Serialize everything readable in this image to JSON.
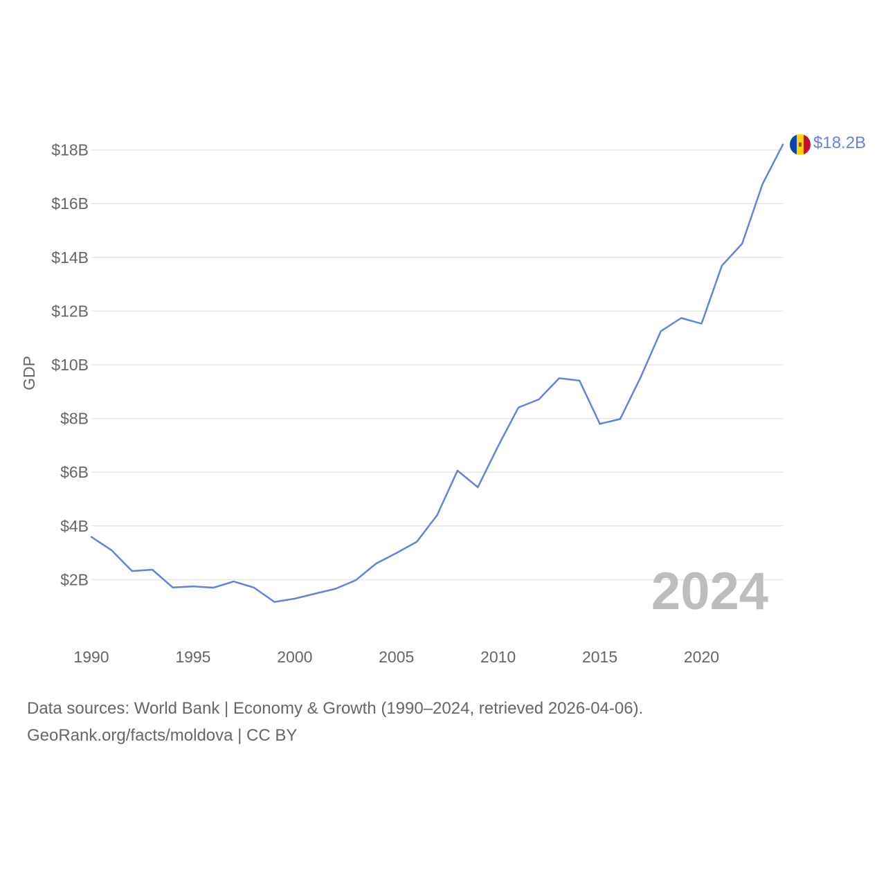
{
  "colors": {
    "line": "#6281e3",
    "grid": "#e6e6e6",
    "tick": "#666666",
    "watermark": "#bdbdbd",
    "flag_blue": "#0046ae",
    "flag_yellow": "#ffd200",
    "flag_red": "#cc092f"
  },
  "chart_data": {
    "type": "line",
    "title": "",
    "xlabel": "",
    "ylabel": "GDP",
    "xlim": [
      1990,
      2024
    ],
    "ylim": [
      0,
      18.5
    ],
    "grid": true,
    "y_ticks": [
      {
        "value": 2,
        "label": "$2B"
      },
      {
        "value": 4,
        "label": "$4B"
      },
      {
        "value": 6,
        "label": "$6B"
      },
      {
        "value": 8,
        "label": "$8B"
      },
      {
        "value": 10,
        "label": "$10B"
      },
      {
        "value": 12,
        "label": "$12B"
      },
      {
        "value": 14,
        "label": "$14B"
      },
      {
        "value": 16,
        "label": "$16B"
      },
      {
        "value": 18,
        "label": "$18B"
      }
    ],
    "x_ticks": [
      {
        "value": 1990,
        "label": "1990"
      },
      {
        "value": 1995,
        "label": "1995"
      },
      {
        "value": 2000,
        "label": "2000"
      },
      {
        "value": 2005,
        "label": "2005"
      },
      {
        "value": 2010,
        "label": "2010"
      },
      {
        "value": 2015,
        "label": "2015"
      },
      {
        "value": 2020,
        "label": "2020"
      }
    ],
    "series": [
      {
        "name": "Moldova",
        "flag_icon": "moldova-flag-icon",
        "end_label": "$18.2B",
        "x": [
          1990,
          1991,
          1992,
          1993,
          1994,
          1995,
          1996,
          1997,
          1998,
          1999,
          2000,
          2001,
          2002,
          2003,
          2004,
          2005,
          2006,
          2007,
          2008,
          2009,
          2010,
          2011,
          2012,
          2013,
          2014,
          2015,
          2016,
          2017,
          2018,
          2019,
          2020,
          2021,
          2022,
          2023,
          2024
        ],
        "values": [
          3.59,
          3.09,
          2.32,
          2.37,
          1.71,
          1.75,
          1.7,
          1.93,
          1.7,
          1.17,
          1.29,
          1.48,
          1.66,
          1.98,
          2.6,
          2.99,
          3.41,
          4.4,
          6.06,
          5.44,
          6.97,
          8.41,
          8.71,
          9.5,
          9.41,
          7.8,
          7.98,
          9.52,
          11.25,
          11.74,
          11.53,
          13.69,
          14.51,
          16.73,
          18.2
        ]
      }
    ],
    "annotation": "2024"
  },
  "footer": {
    "line1": "Data sources: World Bank | Economy & Growth (1990–2024, retrieved 2026-04-06).",
    "line2": "GeoRank.org/facts/moldova | CC BY"
  }
}
